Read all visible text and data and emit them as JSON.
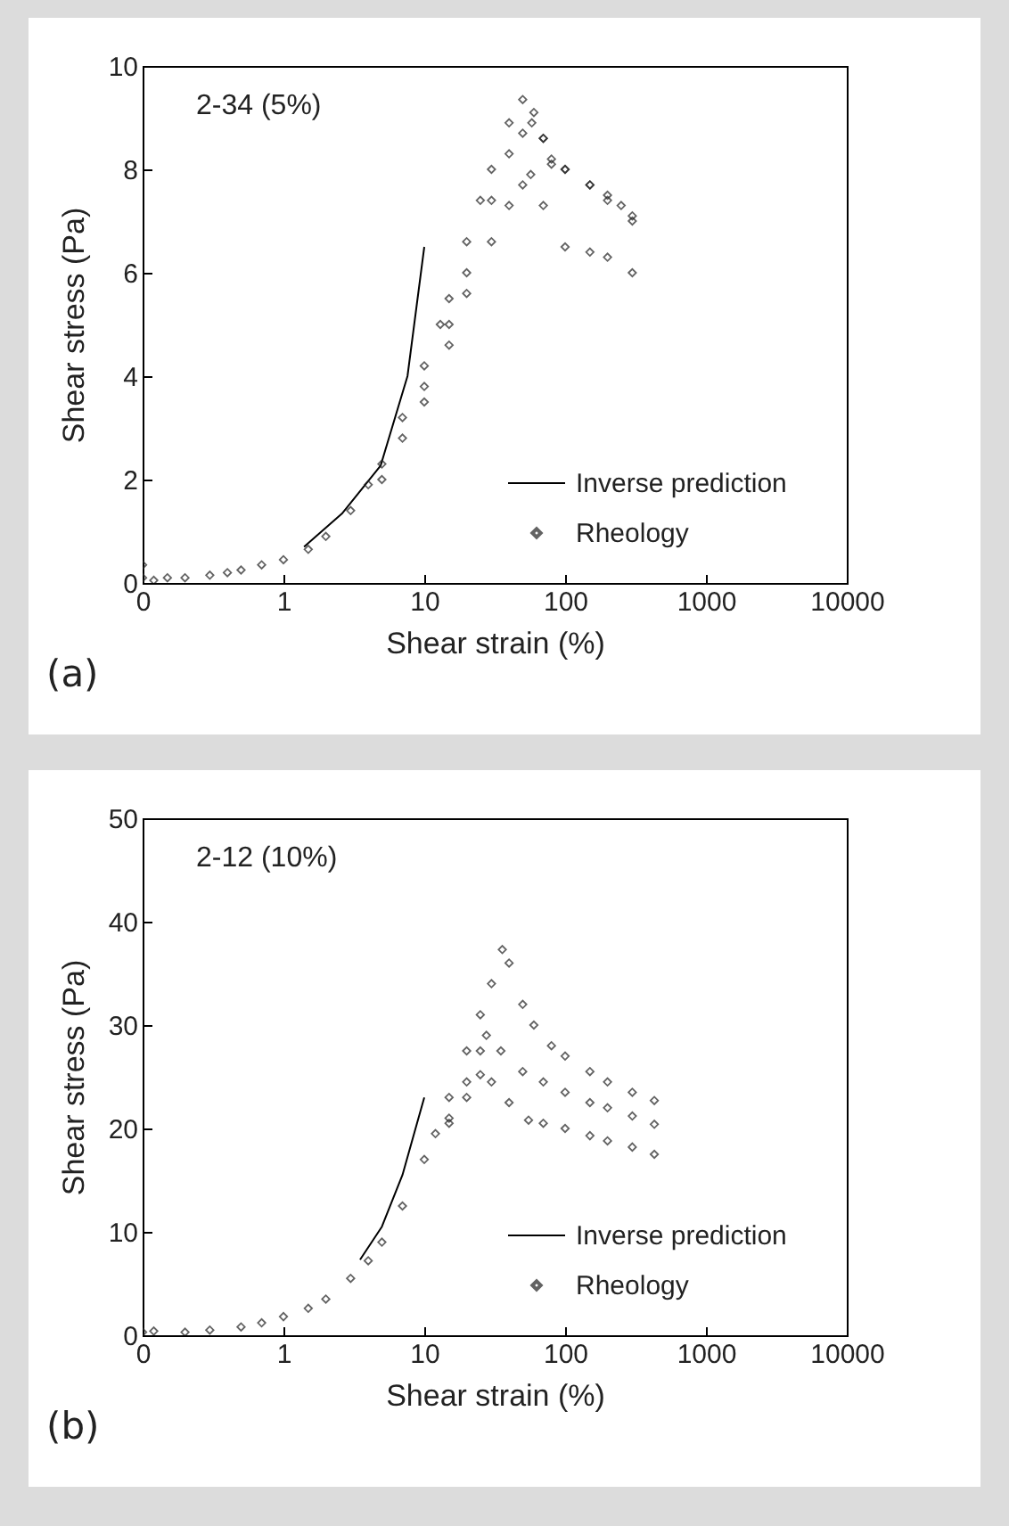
{
  "chart_data": [
    {
      "type": "scatter",
      "xlabel": "Shear strain (%)",
      "ylabel": "Shear stress (Pa)",
      "log": "x",
      "xlim": [
        0.1,
        10000
      ],
      "xticks": [
        {
          "value": 0.1,
          "label": "0"
        },
        1,
        10,
        100,
        1000,
        10000
      ],
      "ylim": [
        0,
        10
      ],
      "yticks": [
        0,
        2,
        4,
        6,
        8,
        10
      ],
      "grid": false,
      "legend": "bottom right",
      "annotations": [
        "2-34 (5%)",
        "(a)"
      ],
      "series": [
        {
          "name": "Inverse prediction",
          "type": "line",
          "color": "#000000",
          "marker": "none",
          "x": [
            1.4,
            2.6,
            4.9,
            7.6,
            10
          ],
          "values": [
            0.7,
            1.34,
            2.27,
            4.0,
            6.5
          ]
        },
        {
          "name": "Rheology",
          "color": "#222222",
          "marker": "diamond",
          "x": [
            0.1,
            0.1,
            0.12,
            0.15,
            0.2,
            0.3,
            0.4,
            0.5,
            0.7,
            1,
            1.5,
            2,
            3,
            4,
            5,
            7,
            10,
            13,
            15,
            20,
            25,
            30,
            40,
            50,
            5,
            7,
            10,
            15,
            20,
            30,
            40,
            50,
            58,
            70,
            80,
            100,
            150,
            200,
            300,
            10,
            15,
            20,
            30,
            40,
            50,
            57,
            70,
            100,
            150,
            200,
            300,
            60,
            70,
            80,
            100,
            150,
            200,
            250,
            300
          ],
          "values": [
            0.35,
            0.1,
            0.05,
            0.1,
            0.1,
            0.15,
            0.2,
            0.25,
            0.35,
            0.45,
            0.65,
            0.9,
            1.4,
            1.9,
            2.3,
            3.2,
            4.2,
            5.0,
            5.5,
            6.6,
            7.4,
            8.0,
            8.9,
            9.35,
            2.0,
            2.8,
            3.8,
            5.0,
            6.0,
            7.4,
            8.3,
            8.7,
            8.9,
            8.6,
            8.1,
            8.0,
            7.7,
            7.4,
            7.0,
            3.5,
            4.6,
            5.6,
            6.6,
            7.3,
            7.7,
            7.9,
            7.3,
            6.5,
            6.4,
            6.3,
            6.0,
            9.1,
            8.6,
            8.2,
            8.0,
            7.7,
            7.5,
            7.3,
            7.1
          ]
        }
      ]
    },
    {
      "type": "scatter",
      "xlabel": "Shear strain (%)",
      "ylabel": "Shear stress (Pa)",
      "log": "x",
      "xlim": [
        0.1,
        10000
      ],
      "xticks": [
        {
          "value": 0.1,
          "label": "0"
        },
        1,
        10,
        100,
        1000,
        10000
      ],
      "ylim": [
        0,
        50
      ],
      "yticks": [
        0,
        10,
        20,
        30,
        40,
        50
      ],
      "grid": false,
      "legend": "bottom right",
      "annotations": [
        "2-12 (10%)",
        "(b)"
      ],
      "series": [
        {
          "name": "Inverse prediction",
          "type": "line",
          "color": "#000000",
          "marker": "none",
          "x": [
            3.5,
            5,
            7,
            10
          ],
          "values": [
            7.3,
            10.5,
            15.5,
            23
          ]
        },
        {
          "name": "Rheology",
          "color": "#222222",
          "marker": "diamond",
          "x": [
            0.1,
            0.12,
            0.2,
            0.3,
            0.5,
            0.7,
            1,
            1.5,
            2,
            3,
            4,
            5,
            7,
            10,
            12,
            15,
            20,
            25,
            30,
            35.8,
            40,
            50,
            60,
            80,
            100,
            150,
            200,
            300,
            430,
            15,
            20,
            25,
            27.6,
            35,
            50,
            70,
            100,
            150,
            200,
            300,
            430,
            15,
            20,
            25,
            30,
            40,
            55,
            70,
            100,
            150,
            200,
            300,
            430
          ],
          "values": [
            0.3,
            0.4,
            0.3,
            0.5,
            0.8,
            1.2,
            1.8,
            2.6,
            3.5,
            5.5,
            7.2,
            9,
            12.5,
            17,
            19.5,
            23,
            27.5,
            31,
            34,
            37.3,
            36,
            32,
            30,
            28,
            27,
            25.5,
            24.5,
            23.5,
            22.7,
            21,
            24.5,
            27.5,
            29,
            27.5,
            25.5,
            24.5,
            23.5,
            22.5,
            22,
            21.2,
            20.4,
            20.5,
            23,
            25.2,
            24.5,
            22.5,
            20.8,
            20.5,
            20,
            19.3,
            18.8,
            18.2,
            17.5
          ]
        }
      ]
    }
  ]
}
